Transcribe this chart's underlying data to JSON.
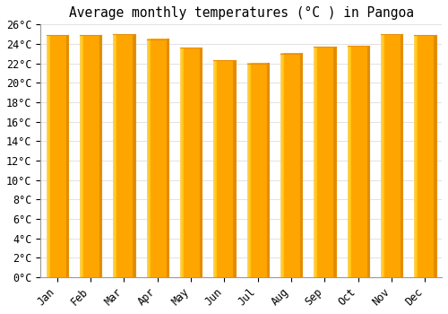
{
  "title": "Average monthly temperatures (°C ) in Pangoa",
  "months": [
    "Jan",
    "Feb",
    "Mar",
    "Apr",
    "May",
    "Jun",
    "Jul",
    "Aug",
    "Sep",
    "Oct",
    "Nov",
    "Dec"
  ],
  "values": [
    24.9,
    24.9,
    25.0,
    24.5,
    23.6,
    22.3,
    22.0,
    23.0,
    23.7,
    23.8,
    25.0,
    24.9
  ],
  "bar_color_main": "#FFA500",
  "bar_color_light": "#FFD060",
  "bar_color_dark": "#E8900A",
  "background_color": "#FFFFFF",
  "grid_color": "#dddddd",
  "ylim": [
    0,
    26
  ],
  "ytick_step": 2,
  "title_fontsize": 10.5,
  "tick_fontsize": 8.5,
  "font_family": "monospace",
  "bar_width": 0.65
}
